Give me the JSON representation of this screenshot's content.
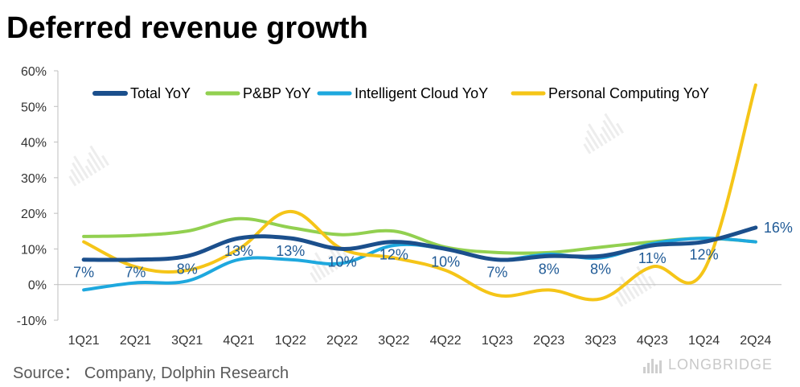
{
  "title": "Deferred revenue growth",
  "source": "Source：  Company, Dolphin Research",
  "logo_text": "LONGBRIDGE",
  "chart_data": {
    "type": "line",
    "categories": [
      "1Q21",
      "2Q21",
      "3Q21",
      "4Q21",
      "1Q22",
      "2Q22",
      "3Q22",
      "4Q22",
      "1Q23",
      "2Q23",
      "3Q23",
      "4Q23",
      "1Q24",
      "2Q24"
    ],
    "y_ticks": [
      "60%",
      "50%",
      "40%",
      "30%",
      "20%",
      "10%",
      "0%",
      "-10%"
    ],
    "ylim": [
      -10,
      60
    ],
    "grid": false,
    "legend_position": "top",
    "series": [
      {
        "name": "Total YoY",
        "color": "#1b4f8c",
        "width": 5,
        "values": [
          7,
          7,
          8,
          13,
          13,
          10,
          12,
          10,
          7,
          8,
          8,
          11,
          12,
          16
        ],
        "labels": [
          "7%",
          "7%",
          "8%",
          "13%",
          "13%",
          "10%",
          "12%",
          "10%",
          "7%",
          "8%",
          "8%",
          "11%",
          "12%",
          "16%"
        ]
      },
      {
        "name": "P&BP YoY",
        "color": "#92d050",
        "width": 4,
        "values": [
          13.5,
          13.8,
          15,
          18.5,
          16,
          14,
          15,
          10.5,
          9,
          9,
          10.5,
          12,
          13,
          12
        ]
      },
      {
        "name": "Intelligent Cloud YoY",
        "color": "#1ea8de",
        "width": 4,
        "values": [
          -1.5,
          0.5,
          1,
          7,
          7,
          6,
          11,
          10,
          7,
          8.5,
          7.5,
          11.5,
          13,
          12
        ]
      },
      {
        "name": "Personal Computing YoY",
        "color": "#f5c518",
        "width": 4,
        "values": [
          12,
          5,
          4,
          10,
          20.5,
          10,
          7.5,
          4,
          -3,
          -1.5,
          -4,
          5,
          4,
          56
        ]
      }
    ]
  }
}
